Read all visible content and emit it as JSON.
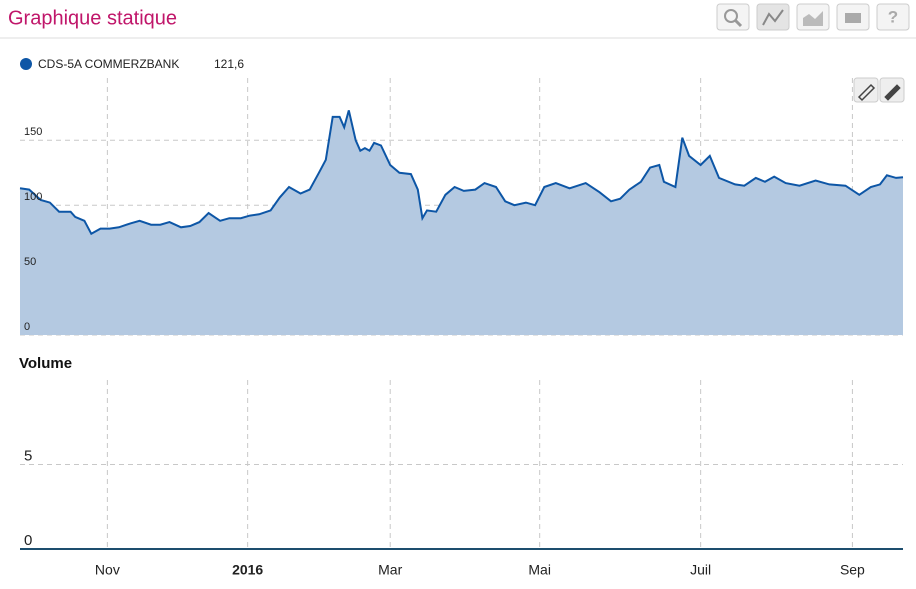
{
  "header": {
    "title": "Graphique statique"
  },
  "chart_data": [
    {
      "type": "area",
      "grid": true,
      "color": "#0d56a6",
      "fill": "#b4c9e1",
      "xlim": [
        0,
        384
      ],
      "xticks": [
        {
          "value": 38,
          "label": "Nov"
        },
        {
          "value": 99,
          "label": "2016"
        },
        {
          "value": 161,
          "label": "Mar"
        },
        {
          "value": 226,
          "label": "Mai"
        },
        {
          "value": 296,
          "label": "Juil"
        },
        {
          "value": 362,
          "label": "Sep"
        }
      ],
      "ylim": [
        0,
        198
      ],
      "yticks": [
        0,
        50,
        100,
        150
      ],
      "series": [
        {
          "name": "CDS-5A COMMERZBANK",
          "last_label": "121,6",
          "x": [
            0,
            4,
            9,
            13,
            17,
            22,
            24,
            28,
            31,
            35,
            39,
            43,
            48,
            52,
            57,
            61,
            65,
            70,
            74,
            78,
            82,
            87,
            91,
            96,
            100,
            104,
            109,
            113,
            117,
            122,
            126,
            130,
            133,
            136,
            139,
            141,
            143,
            146,
            148,
            150,
            152,
            154,
            157,
            161,
            165,
            170,
            173,
            175,
            177,
            181,
            185,
            189,
            193,
            198,
            202,
            207,
            211,
            215,
            220,
            224,
            228,
            233,
            239,
            246,
            252,
            257,
            261,
            265,
            270,
            274,
            278,
            280,
            285,
            288,
            291,
            296,
            300,
            304,
            311,
            315,
            320,
            324,
            328,
            333,
            339,
            346,
            352,
            359,
            365,
            370,
            374,
            377,
            381,
            384
          ],
          "values": [
            113,
            112,
            104,
            102,
            95,
            95,
            91,
            88,
            78,
            82,
            82,
            83,
            86,
            88,
            85,
            85,
            87,
            83,
            84,
            87,
            94,
            88,
            90,
            90,
            92,
            93,
            96,
            106,
            114,
            109,
            112,
            125,
            135,
            168,
            168,
            160,
            173,
            150,
            142,
            144,
            142,
            148,
            146,
            131,
            125,
            124,
            112,
            90,
            96,
            95,
            108,
            114,
            111,
            112,
            117,
            114,
            103,
            100,
            102,
            100,
            114,
            117,
            113,
            117,
            110,
            103,
            105,
            112,
            118,
            129,
            131,
            118,
            114,
            152,
            138,
            131,
            138,
            121,
            116,
            115,
            121,
            118,
            122,
            117,
            115,
            119,
            116,
            115,
            108,
            114,
            116,
            123,
            121,
            121.6
          ]
        }
      ]
    },
    {
      "type": "volume",
      "title": "Volume",
      "grid": true,
      "ylim": [
        0,
        10
      ],
      "yticks": [
        0,
        5
      ]
    }
  ]
}
